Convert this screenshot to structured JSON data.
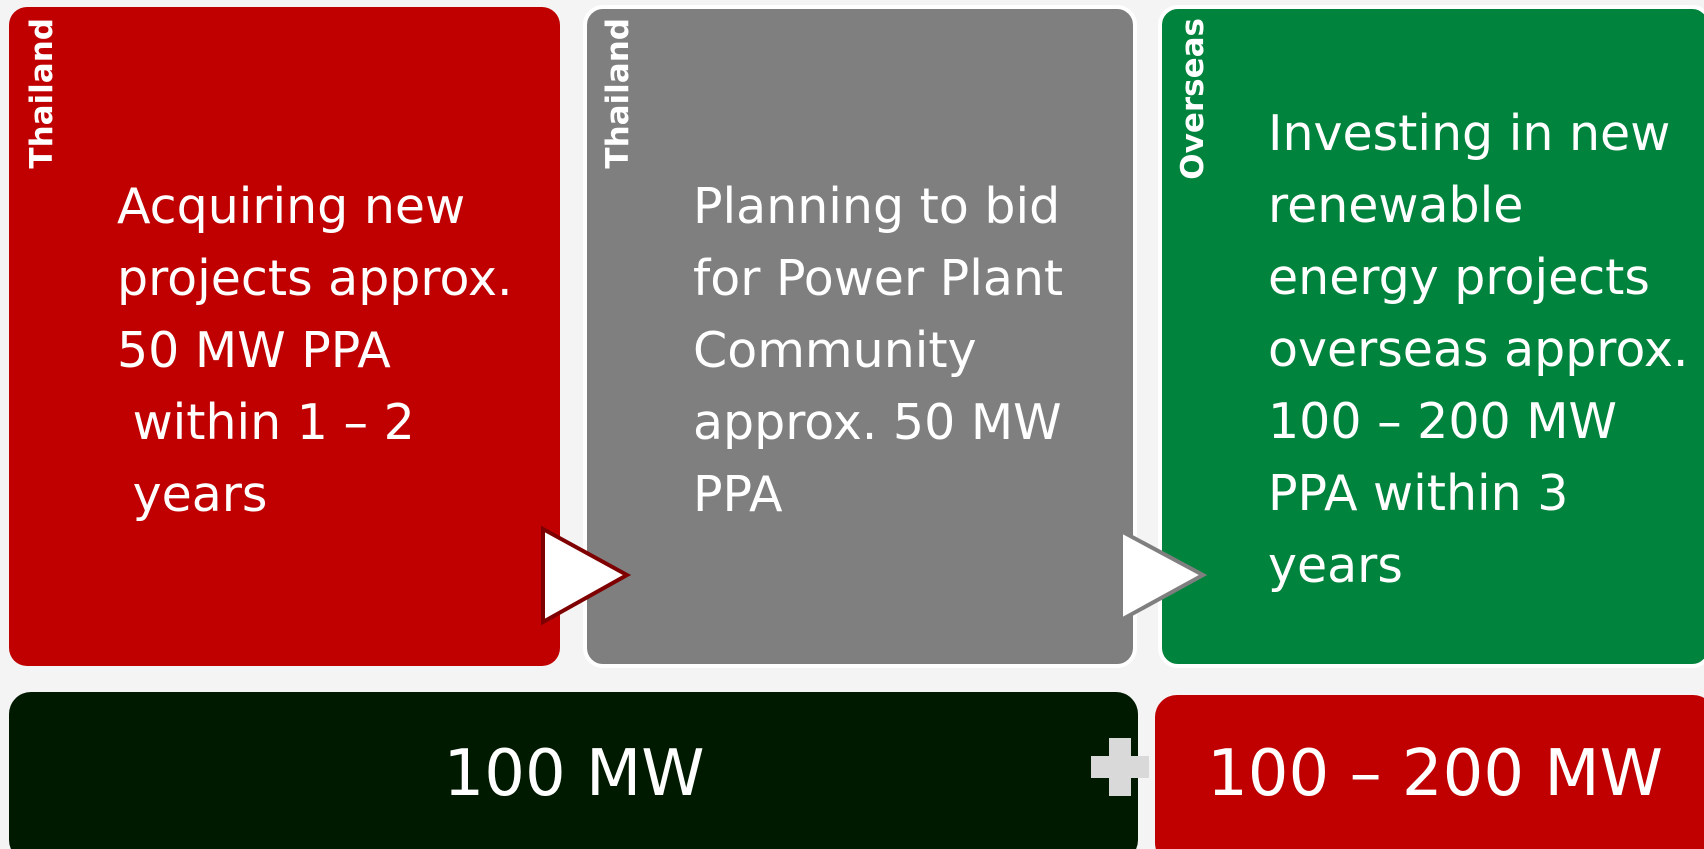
{
  "cards": [
    {
      "region": "Thailand",
      "lines": [
        "Acquiring new",
        "projects approx.",
        "50 MW PPA",
        " within 1 – 2",
        " years"
      ]
    },
    {
      "region": "Thailand",
      "lines": [
        "Planning to bid",
        "for Power Plant",
        "Community",
        "approx. 50 MW",
        "PPA"
      ]
    },
    {
      "region": "Overseas",
      "lines": [
        "Investing in new",
        "renewable",
        "energy projects",
        "overseas approx.",
        "100 – 200 MW",
        "PPA within 3",
        "years"
      ]
    }
  ],
  "totals": [
    "100 MW",
    "100 – 200 MW"
  ]
}
